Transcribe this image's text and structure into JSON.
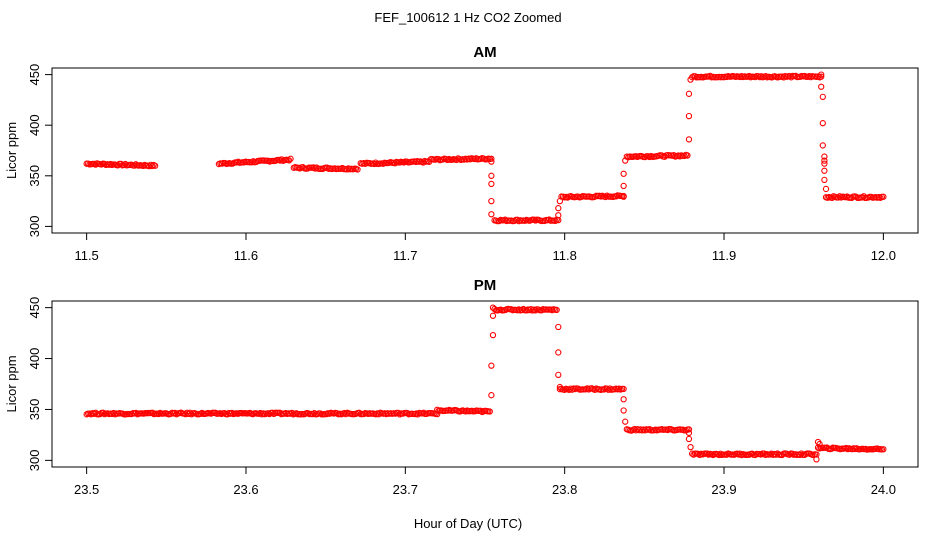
{
  "figure": {
    "title": "FEF_100612  1 Hz CO2 Zoomed",
    "xlabel": "Hour of Day (UTC)"
  },
  "chart_data": [
    {
      "type": "scatter",
      "title": "AM",
      "ylabel": "Licor ppm",
      "xlim": [
        11.5,
        12.0
      ],
      "ylim": [
        300,
        450
      ],
      "xticks": [
        "11.5",
        "11.6",
        "11.7",
        "11.8",
        "11.9",
        "12.0"
      ],
      "yticks": [
        "300",
        "350",
        "400",
        "450"
      ],
      "marker_color": "#ff0000",
      "segments": [
        {
          "x": [
            11.5,
            11.543
          ],
          "y": [
            362,
            360
          ]
        },
        {
          "x": [
            11.583,
            11.628
          ],
          "y": [
            362,
            366
          ]
        },
        {
          "x": [
            11.63,
            11.67
          ],
          "y": [
            358,
            357
          ]
        },
        {
          "x": [
            11.672,
            11.715
          ],
          "y": [
            362,
            364
          ]
        },
        {
          "x": [
            11.716,
            11.754
          ],
          "y": [
            366,
            367
          ]
        },
        {
          "x": [
            11.756,
            11.796
          ],
          "y": [
            306,
            306
          ]
        },
        {
          "x": [
            11.798,
            11.837
          ],
          "y": [
            329,
            330
          ]
        },
        {
          "x": [
            11.839,
            11.877
          ],
          "y": [
            369,
            370
          ]
        },
        {
          "x": [
            11.88,
            11.961
          ],
          "y": [
            448,
            448
          ]
        },
        {
          "x": [
            11.964,
            12.0
          ],
          "y": [
            329,
            329
          ]
        }
      ],
      "transition_points": [
        {
          "x": 11.754,
          "y": 364
        },
        {
          "x": 11.754,
          "y": 350
        },
        {
          "x": 11.754,
          "y": 342
        },
        {
          "x": 11.754,
          "y": 325
        },
        {
          "x": 11.754,
          "y": 312
        },
        {
          "x": 11.796,
          "y": 311
        },
        {
          "x": 11.796,
          "y": 318
        },
        {
          "x": 11.797,
          "y": 325
        },
        {
          "x": 11.837,
          "y": 330
        },
        {
          "x": 11.837,
          "y": 340
        },
        {
          "x": 11.837,
          "y": 352
        },
        {
          "x": 11.838,
          "y": 365
        },
        {
          "x": 11.877,
          "y": 370
        },
        {
          "x": 11.878,
          "y": 386
        },
        {
          "x": 11.878,
          "y": 409
        },
        {
          "x": 11.878,
          "y": 431
        },
        {
          "x": 11.879,
          "y": 445
        },
        {
          "x": 11.961,
          "y": 450
        },
        {
          "x": 11.961,
          "y": 438
        },
        {
          "x": 11.962,
          "y": 428
        },
        {
          "x": 11.962,
          "y": 402
        },
        {
          "x": 11.962,
          "y": 380
        },
        {
          "x": 11.963,
          "y": 369
        },
        {
          "x": 11.963,
          "y": 365
        },
        {
          "x": 11.963,
          "y": 362
        },
        {
          "x": 11.963,
          "y": 355
        },
        {
          "x": 11.963,
          "y": 346
        },
        {
          "x": 11.964,
          "y": 337
        }
      ]
    },
    {
      "type": "scatter",
      "title": "PM",
      "ylabel": "Licor ppm",
      "xlim": [
        23.5,
        24.0
      ],
      "ylim": [
        300,
        450
      ],
      "xticks": [
        "23.5",
        "23.6",
        "23.7",
        "23.8",
        "23.9",
        "24.0"
      ],
      "yticks": [
        "300",
        "350",
        "400",
        "450"
      ],
      "marker_color": "#ff0000",
      "segments": [
        {
          "x": [
            23.5,
            23.72
          ],
          "y": [
            346,
            346
          ]
        },
        {
          "x": [
            23.72,
            23.753
          ],
          "y": [
            349,
            348
          ]
        },
        {
          "x": [
            23.756,
            23.795
          ],
          "y": [
            448,
            448
          ]
        },
        {
          "x": [
            23.797,
            23.837
          ],
          "y": [
            370,
            370
          ]
        },
        {
          "x": [
            23.839,
            23.878
          ],
          "y": [
            330,
            330
          ]
        },
        {
          "x": [
            23.88,
            23.958
          ],
          "y": [
            306,
            306
          ]
        },
        {
          "x": [
            23.959,
            24.0
          ],
          "y": [
            312,
            311
          ]
        }
      ],
      "transition_points": [
        {
          "x": 23.754,
          "y": 364
        },
        {
          "x": 23.754,
          "y": 393
        },
        {
          "x": 23.755,
          "y": 423
        },
        {
          "x": 23.755,
          "y": 442
        },
        {
          "x": 23.755,
          "y": 450
        },
        {
          "x": 23.796,
          "y": 431
        },
        {
          "x": 23.796,
          "y": 406
        },
        {
          "x": 23.796,
          "y": 384
        },
        {
          "x": 23.797,
          "y": 372
        },
        {
          "x": 23.837,
          "y": 360
        },
        {
          "x": 23.837,
          "y": 349
        },
        {
          "x": 23.838,
          "y": 338
        },
        {
          "x": 23.878,
          "y": 327
        },
        {
          "x": 23.878,
          "y": 321
        },
        {
          "x": 23.879,
          "y": 313
        },
        {
          "x": 23.958,
          "y": 301
        },
        {
          "x": 23.959,
          "y": 318
        },
        {
          "x": 23.96,
          "y": 316
        }
      ]
    }
  ]
}
